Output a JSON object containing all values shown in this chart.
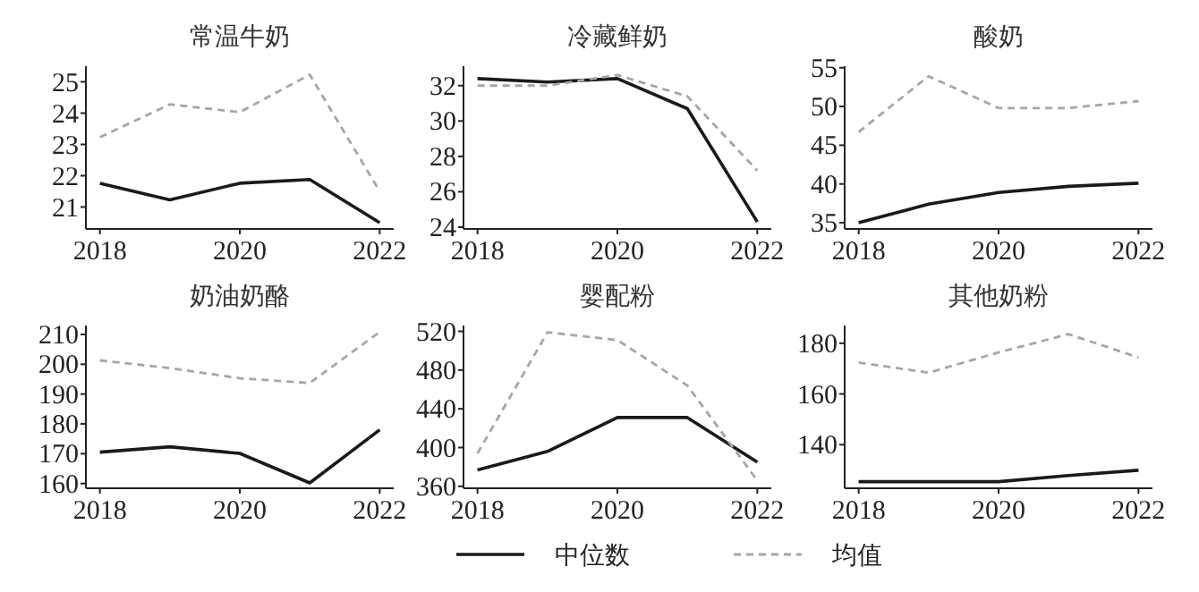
{
  "chart_data": [
    {
      "type": "line",
      "title": "常温牛奶",
      "x": [
        2018,
        2019,
        2020,
        2021,
        2022
      ],
      "xlim": [
        2017.8,
        2022.2
      ],
      "xticks": [
        2018,
        2020,
        2022
      ],
      "ylim": [
        20.3,
        25.5
      ],
      "yticks": [
        21,
        22,
        23,
        24,
        25
      ],
      "legend": "bottom",
      "series": [
        {
          "name": "中位数",
          "color": "#1a1a1a",
          "line_style": "solid",
          "values": [
            21.76,
            21.23,
            21.76,
            21.88,
            20.5
          ]
        },
        {
          "name": "均值",
          "color": "#a6a6a6",
          "line_style": "dashed",
          "values": [
            23.23,
            24.28,
            24.03,
            25.23,
            21.5
          ]
        }
      ]
    },
    {
      "type": "line",
      "title": "冷藏鲜奶",
      "x": [
        2018,
        2019,
        2020,
        2021,
        2022
      ],
      "xlim": [
        2017.8,
        2022.2
      ],
      "xticks": [
        2018,
        2020,
        2022
      ],
      "ylim": [
        23.9,
        33.1
      ],
      "yticks": [
        24,
        26,
        28,
        30,
        32
      ],
      "series": [
        {
          "color": "#1a1a1a",
          "line_style": "solid",
          "values": [
            32.4,
            32.2,
            32.4,
            30.7,
            24.3
          ]
        },
        {
          "color": "#a6a6a6",
          "line_style": "dashed",
          "values": [
            32.0,
            32.0,
            32.6,
            31.4,
            27.2
          ]
        }
      ]
    },
    {
      "type": "line",
      "title": "酸奶",
      "x": [
        2018,
        2019,
        2020,
        2021,
        2022
      ],
      "xlim": [
        2017.8,
        2022.2
      ],
      "xticks": [
        2018,
        2020,
        2022
      ],
      "ylim": [
        34.2,
        55.2
      ],
      "yticks": [
        35,
        40,
        45,
        50,
        55
      ],
      "series": [
        {
          "color": "#1a1a1a",
          "line_style": "solid",
          "values": [
            35.0,
            37.4,
            38.9,
            39.7,
            40.1
          ]
        },
        {
          "color": "#a6a6a6",
          "line_style": "dashed",
          "values": [
            46.7,
            53.9,
            49.8,
            49.8,
            50.7
          ]
        }
      ]
    },
    {
      "type": "line",
      "title": "奶油奶酪",
      "x": [
        2018,
        2019,
        2020,
        2021,
        2022
      ],
      "xlim": [
        2017.8,
        2022.2
      ],
      "xticks": [
        2018,
        2020,
        2022
      ],
      "ylim": [
        158.4,
        213
      ],
      "yticks": [
        160,
        170,
        180,
        190,
        200,
        210
      ],
      "series": [
        {
          "color": "#1a1a1a",
          "line_style": "solid",
          "values": [
            170.5,
            172.3,
            170.1,
            160.2,
            178
          ]
        },
        {
          "color": "#a6a6a6",
          "line_style": "dashed",
          "values": [
            201.3,
            198.7,
            195.3,
            193.7,
            210.8
          ]
        }
      ]
    },
    {
      "type": "line",
      "title": "婴配粉",
      "x": [
        2018,
        2019,
        2020,
        2021,
        2022
      ],
      "xlim": [
        2017.8,
        2022.2
      ],
      "xticks": [
        2018,
        2020,
        2022
      ],
      "ylim": [
        358,
        526
      ],
      "yticks": [
        360,
        400,
        440,
        480,
        520
      ],
      "series": [
        {
          "color": "#1a1a1a",
          "line_style": "solid",
          "values": [
            377,
            396,
            431,
            431,
            385
          ]
        },
        {
          "color": "#a6a6a6",
          "line_style": "dashed",
          "values": [
            394,
            519,
            511,
            464,
            366
          ]
        }
      ]
    },
    {
      "type": "line",
      "title": "其他奶粉",
      "x": [
        2018,
        2019,
        2020,
        2021,
        2022
      ],
      "xlim": [
        2017.8,
        2022.2
      ],
      "xticks": [
        2018,
        2020,
        2022
      ],
      "ylim": [
        122.8,
        187
      ],
      "yticks": [
        140,
        160,
        180
      ],
      "series": [
        {
          "color": "#1a1a1a",
          "line_style": "solid",
          "values": [
            125.4,
            125.4,
            125.4,
            127.8,
            129.9
          ]
        },
        {
          "color": "#a6a6a6",
          "line_style": "dashed",
          "values": [
            172.4,
            168.4,
            176.4,
            183.6,
            174.4
          ]
        }
      ]
    }
  ]
}
